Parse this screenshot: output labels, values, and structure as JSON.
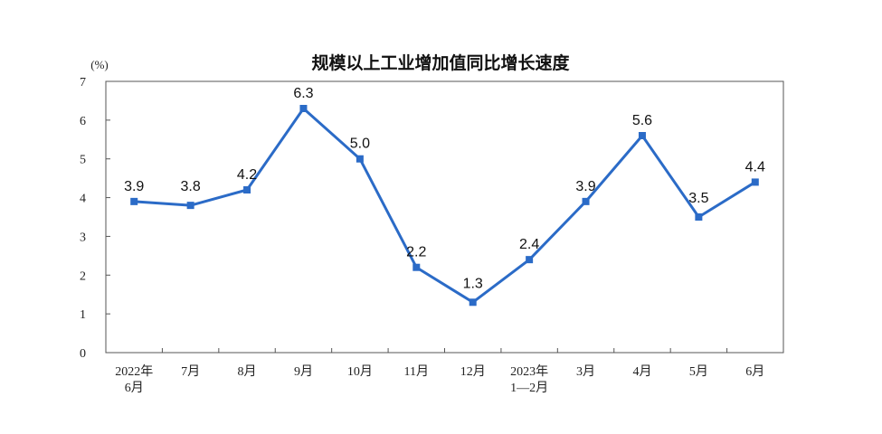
{
  "chart_data": {
    "type": "line",
    "title": "规模以上工业增加值同比增长速度",
    "unit_label": "(%)",
    "xlabel": "",
    "ylabel": "",
    "ylim": [
      0,
      7
    ],
    "yticks": [
      0,
      1,
      2,
      3,
      4,
      5,
      6,
      7
    ],
    "categories": [
      [
        "2022年",
        "6月"
      ],
      [
        "7月"
      ],
      [
        "8月"
      ],
      [
        "9月"
      ],
      [
        "10月"
      ],
      [
        "11月"
      ],
      [
        "12月"
      ],
      [
        "2023年",
        "1—2月"
      ],
      [
        "3月"
      ],
      [
        "4月"
      ],
      [
        "5月"
      ],
      [
        "6月"
      ]
    ],
    "series": [
      {
        "values": [
          3.9,
          3.8,
          4.2,
          6.3,
          5.0,
          2.2,
          1.3,
          2.4,
          3.9,
          5.6,
          3.5,
          4.4
        ],
        "labels": [
          "3.9",
          "3.8",
          "4.2",
          "6.3",
          "5.0",
          "2.2",
          "1.3",
          "2.4",
          "3.9",
          "5.6",
          "3.5",
          "4.4"
        ],
        "color": "#2b6bc7"
      }
    ],
    "grid": false,
    "legend": "none"
  }
}
